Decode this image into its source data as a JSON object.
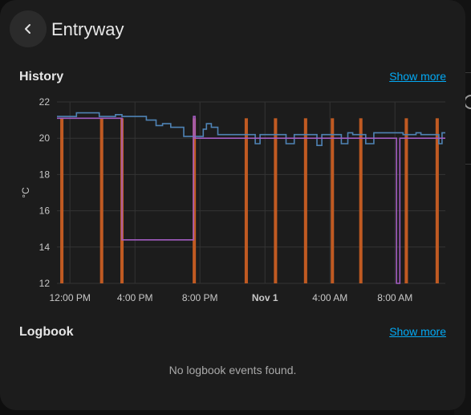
{
  "header": {
    "title": "Entryway",
    "back_icon": "chevron-left-icon"
  },
  "history": {
    "title": "History",
    "show_more": "Show more"
  },
  "logbook": {
    "title": "Logbook",
    "show_more": "Show more",
    "empty_text": "No logbook events found."
  },
  "colors": {
    "accent": "#03a9f4",
    "current_temp": "#4f83b5",
    "target_temp": "#a25cc0",
    "heating": "#c05a22"
  },
  "chart_data": {
    "type": "line",
    "ylabel": "°C",
    "ylim": [
      12,
      22
    ],
    "y_ticks": [
      "12",
      "14",
      "16",
      "18",
      "20",
      "22"
    ],
    "x_ticks": [
      {
        "t": 0,
        "label": "12:00 PM",
        "bold": false
      },
      {
        "t": 4,
        "label": "4:00 PM",
        "bold": false
      },
      {
        "t": 8,
        "label": "8:00 PM",
        "bold": false
      },
      {
        "t": 12,
        "label": "Nov 1",
        "bold": true
      },
      {
        "t": 16,
        "label": "4:00 AM",
        "bold": false
      },
      {
        "t": 20,
        "label": "8:00 AM",
        "bold": false
      }
    ],
    "x_range": [
      -0.8,
      23.1
    ],
    "grid": true,
    "series": [
      {
        "points": [
          [
            -0.8,
            21.2
          ],
          [
            0.4,
            21.2
          ],
          [
            0.4,
            21.4
          ],
          [
            1.8,
            21.4
          ],
          [
            1.8,
            21.2
          ],
          [
            2.8,
            21.2
          ],
          [
            2.8,
            21.3
          ],
          [
            3.2,
            21.3
          ],
          [
            3.2,
            21.2
          ],
          [
            4.7,
            21.2
          ],
          [
            4.7,
            21.0
          ],
          [
            5.3,
            21.0
          ],
          [
            5.3,
            20.7
          ],
          [
            5.7,
            20.7
          ],
          [
            5.7,
            20.8
          ],
          [
            6.2,
            20.8
          ],
          [
            6.2,
            20.6
          ],
          [
            7.0,
            20.6
          ],
          [
            7.0,
            20.1
          ],
          [
            8.2,
            20.1
          ],
          [
            8.2,
            20.5
          ],
          [
            8.4,
            20.5
          ],
          [
            8.4,
            20.8
          ],
          [
            8.7,
            20.8
          ],
          [
            8.7,
            20.6
          ],
          [
            9.1,
            20.6
          ],
          [
            9.1,
            20.2
          ],
          [
            11.4,
            20.2
          ],
          [
            11.4,
            19.7
          ],
          [
            11.7,
            19.7
          ],
          [
            11.7,
            20.2
          ],
          [
            13.3,
            20.2
          ],
          [
            13.3,
            19.7
          ],
          [
            13.8,
            19.7
          ],
          [
            13.8,
            20.2
          ],
          [
            15.2,
            20.2
          ],
          [
            15.2,
            19.6
          ],
          [
            15.5,
            19.6
          ],
          [
            15.5,
            20.2
          ],
          [
            16.7,
            20.2
          ],
          [
            16.7,
            19.7
          ],
          [
            17.1,
            19.7
          ],
          [
            17.1,
            20.3
          ],
          [
            17.4,
            20.3
          ],
          [
            17.4,
            20.2
          ],
          [
            18.2,
            20.2
          ],
          [
            18.2,
            19.7
          ],
          [
            18.7,
            19.7
          ],
          [
            18.7,
            20.3
          ],
          [
            20.5,
            20.3
          ],
          [
            20.5,
            20.2
          ],
          [
            21.3,
            20.2
          ],
          [
            21.3,
            20.3
          ],
          [
            21.6,
            20.3
          ],
          [
            21.6,
            20.2
          ],
          [
            22.7,
            20.2
          ],
          [
            22.7,
            19.7
          ],
          [
            22.9,
            19.7
          ],
          [
            22.9,
            20.3
          ],
          [
            23.1,
            20.3
          ]
        ]
      },
      {
        "points": [
          [
            -0.8,
            21.1
          ],
          [
            3.2,
            21.1
          ],
          [
            3.2,
            14.4
          ],
          [
            7.6,
            14.4
          ],
          [
            7.6,
            21.2
          ],
          [
            7.7,
            21.2
          ],
          [
            7.7,
            20.0
          ],
          [
            20.1,
            20.0
          ],
          [
            20.1,
            12.0
          ],
          [
            20.3,
            12.0
          ],
          [
            20.3,
            20.0
          ],
          [
            23.1,
            20.0
          ]
        ]
      }
    ],
    "heating_periods": [
      [
        -0.6,
        -0.4
      ],
      [
        1.85,
        2.05
      ],
      [
        3.1,
        3.3
      ],
      [
        7.55,
        7.75
      ],
      [
        10.75,
        10.95
      ],
      [
        12.55,
        12.75
      ],
      [
        14.4,
        14.6
      ],
      [
        16.05,
        16.25
      ],
      [
        17.8,
        18.0
      ],
      [
        20.6,
        20.8
      ],
      [
        22.5,
        22.7
      ]
    ]
  }
}
